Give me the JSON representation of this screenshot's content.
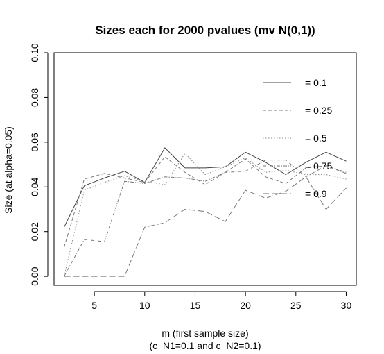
{
  "chart_data": {
    "type": "line",
    "title": "Sizes each for 2000 pvalues (mv N(0,1))",
    "xlabel": "m (first sample size)",
    "xlabel2": "(c_N1=0.1 and c_N2=0.1)",
    "ylabel": "Size (at alpha=0.05)",
    "xlim": [
      1,
      31
    ],
    "ylim": [
      -0.004,
      0.1
    ],
    "xticks": [
      5,
      10,
      15,
      20,
      25,
      30
    ],
    "yticks": [
      0.0,
      0.02,
      0.04,
      0.06,
      0.08,
      0.1
    ],
    "ytick_labels": [
      "0.00",
      "0.02",
      "0.04",
      "0.06",
      "0.08",
      "0.10"
    ],
    "grid": false,
    "legend_position": "right",
    "x": [
      2,
      4,
      6,
      8,
      10,
      12,
      14,
      16,
      18,
      20,
      22,
      24,
      26,
      28,
      30
    ],
    "series": [
      {
        "name": "= 0.1",
        "dash": "solid",
        "color": "#444444",
        "values": [
          0.022,
          0.0405,
          0.044,
          0.047,
          0.042,
          0.0575,
          0.0485,
          0.0485,
          0.049,
          0.0555,
          0.051,
          0.0455,
          0.051,
          0.0555,
          0.0515
        ]
      },
      {
        "name": "= 0.25",
        "dash": "dashed",
        "color": "#777777",
        "values": [
          0.013,
          0.0435,
          0.046,
          0.044,
          0.042,
          0.0535,
          0.0465,
          0.041,
          0.0465,
          0.0525,
          0.0445,
          0.0415,
          0.0485,
          0.0495,
          0.0465
        ]
      },
      {
        "name": "= 0.5",
        "dash": "dotted",
        "color": "#888888",
        "values": [
          0.0,
          0.0385,
          0.042,
          0.045,
          0.0425,
          0.041,
          0.055,
          0.0455,
          0.049,
          0.053,
          0.0465,
          0.0475,
          0.0455,
          0.0455,
          0.0435
        ]
      },
      {
        "name": "= 0.75",
        "dash": "dashdot",
        "color": "#777777",
        "values": [
          0.0,
          0.0165,
          0.0155,
          0.0425,
          0.0415,
          0.0445,
          0.044,
          0.0425,
          0.0465,
          0.047,
          0.052,
          0.052,
          0.0445,
          0.0495,
          0.046
        ]
      },
      {
        "name": "= 0.9",
        "dash": "longdash",
        "color": "#777777",
        "values": [
          0.0,
          0.0,
          0.0,
          0.0,
          0.022,
          0.024,
          0.03,
          0.029,
          0.0245,
          0.0385,
          0.035,
          0.038,
          0.0445,
          0.03,
          0.0395
        ]
      }
    ]
  }
}
